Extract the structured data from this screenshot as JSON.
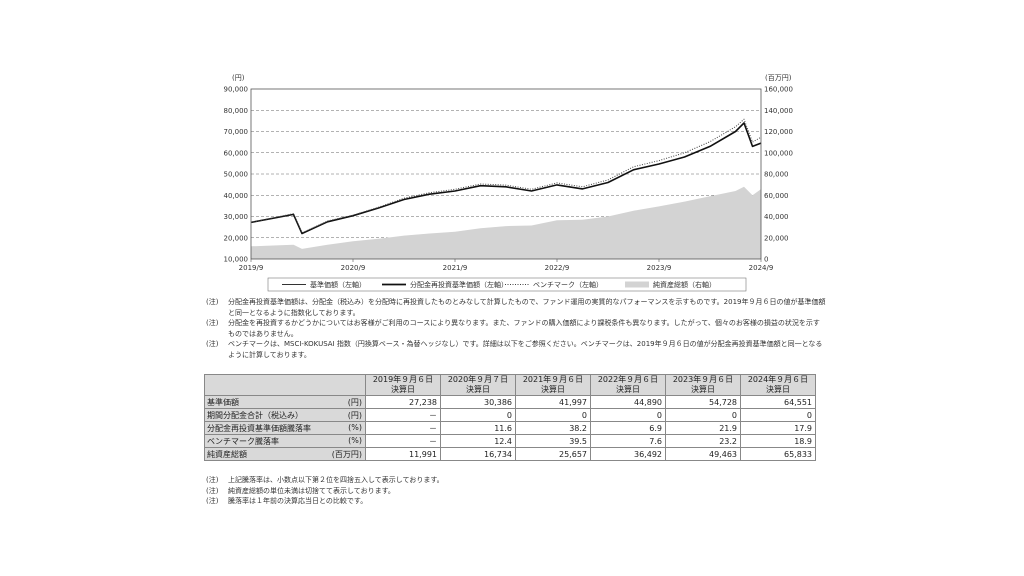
{
  "chart_data": {
    "type": "line",
    "left_axis_unit": "(円)",
    "right_axis_unit": "(百万円)",
    "x_ticks": [
      "2019/9",
      "2020/9",
      "2021/9",
      "2022/9",
      "2023/9",
      "2024/9"
    ],
    "left_ticks": [
      "90,000",
      "80,000",
      "70,000",
      "60,000",
      "50,000",
      "40,000",
      "30,000",
      "20,000",
      "10,000"
    ],
    "right_ticks": [
      "160,000",
      "140,000",
      "120,000",
      "100,000",
      "80,000",
      "60,000",
      "40,000",
      "20,000",
      "0"
    ],
    "ylim_left": [
      10000,
      90000
    ],
    "ylim_right": [
      0,
      160000
    ],
    "grid": true,
    "series": [
      {
        "name": "基準価額（左軸）",
        "axis": "left",
        "style": "solid-thin",
        "color": "#333333",
        "x": [
          "2019/9",
          "2019/12",
          "2020/2",
          "2020/3",
          "2020/6",
          "2020/9",
          "2020/12",
          "2021/3",
          "2021/6",
          "2021/9",
          "2021/12",
          "2022/3",
          "2022/6",
          "2022/9",
          "2022/12",
          "2023/3",
          "2023/6",
          "2023/9",
          "2023/12",
          "2024/3",
          "2024/6",
          "2024/7",
          "2024/8",
          "2024/9"
        ],
        "values": [
          27238,
          29500,
          31000,
          22000,
          27500,
          30386,
          34000,
          38000,
          40500,
          41997,
          44500,
          44000,
          42000,
          44890,
          43000,
          46000,
          52000,
          54728,
          58000,
          63000,
          70000,
          74000,
          63000,
          64551
        ]
      },
      {
        "name": "分配金再投資基準価額（左軸）",
        "axis": "left",
        "style": "solid-thick",
        "color": "#111111",
        "x": [
          "2019/9",
          "2019/12",
          "2020/2",
          "2020/3",
          "2020/6",
          "2020/9",
          "2020/12",
          "2021/3",
          "2021/6",
          "2021/9",
          "2021/12",
          "2022/3",
          "2022/6",
          "2022/9",
          "2022/12",
          "2023/3",
          "2023/6",
          "2023/9",
          "2023/12",
          "2024/3",
          "2024/6",
          "2024/7",
          "2024/8",
          "2024/9"
        ],
        "values": [
          27238,
          29500,
          31000,
          22000,
          27500,
          30386,
          34000,
          38000,
          40500,
          41997,
          44500,
          44000,
          42000,
          44890,
          43000,
          46000,
          52000,
          54728,
          58000,
          63000,
          70000,
          74000,
          63000,
          64551
        ]
      },
      {
        "name": "ベンチマーク（左軸）",
        "axis": "left",
        "style": "dotted",
        "color": "#444444",
        "x": [
          "2019/9",
          "2019/12",
          "2020/2",
          "2020/3",
          "2020/6",
          "2020/9",
          "2020/12",
          "2021/3",
          "2021/6",
          "2021/9",
          "2021/12",
          "2022/3",
          "2022/6",
          "2022/9",
          "2022/12",
          "2023/3",
          "2023/6",
          "2023/9",
          "2023/12",
          "2024/3",
          "2024/6",
          "2024/7",
          "2024/8",
          "2024/9"
        ],
        "values": [
          27238,
          29700,
          31300,
          22300,
          27900,
          30600,
          34400,
          38600,
          41200,
          42800,
          45300,
          44800,
          42800,
          45800,
          44000,
          47200,
          53400,
          56300,
          60000,
          65200,
          72200,
          75800,
          65000,
          67300
        ]
      },
      {
        "name": "純資産総額（右軸）",
        "axis": "right",
        "style": "area",
        "color": "#d3d3d3",
        "x": [
          "2019/9",
          "2019/12",
          "2020/2",
          "2020/3",
          "2020/6",
          "2020/9",
          "2020/12",
          "2021/3",
          "2021/6",
          "2021/9",
          "2021/12",
          "2022/3",
          "2022/6",
          "2022/9",
          "2022/12",
          "2023/3",
          "2023/6",
          "2023/9",
          "2023/12",
          "2024/3",
          "2024/6",
          "2024/7",
          "2024/8",
          "2024/9"
        ],
        "values": [
          11991,
          12800,
          13500,
          9500,
          13500,
          16734,
          19000,
          22000,
          24000,
          25657,
          29000,
          31000,
          31500,
          36492,
          37000,
          40000,
          45500,
          49463,
          54000,
          59000,
          64000,
          68000,
          60000,
          65833
        ]
      }
    ],
    "legend_position": "bottom"
  },
  "notes_top": [
    {
      "tag": "(注)",
      "text": "分配金再投資基準価額は、分配金（税込み）を分配時に再投資したものとみなして計算したもので、ファンド運用の実質的なパフォーマンスを示すものです。2019年９月６日の値が基準価額と同一となるように指数化しております。"
    },
    {
      "tag": "(注)",
      "text": "分配金を再投資するかどうかについてはお客様がご利用のコースにより異なります。また、ファンドの購入価額により課税条件も異なります。したがって、個々のお客様の損益の状況を示すものではありません。"
    },
    {
      "tag": "(注)",
      "text": "ベンチマークは、MSCI-KOKUSAI 指数（円換算ベース・為替ヘッジなし）です。詳細は以下をご参照ください。ベンチマークは、2019年９月６日の値が分配金再投資基準価額と同一となるように計算しております。"
    }
  ],
  "table": {
    "headers": [
      [
        "2019年９月６日",
        "決算日"
      ],
      [
        "2020年９月７日",
        "決算日"
      ],
      [
        "2021年９月６日",
        "決算日"
      ],
      [
        "2022年９月６日",
        "決算日"
      ],
      [
        "2023年９月６日",
        "決算日"
      ],
      [
        "2024年９月６日",
        "決算日"
      ]
    ],
    "rows": [
      {
        "label": "基準価額",
        "unit": "(円)",
        "values": [
          "27,238",
          "30,386",
          "41,997",
          "44,890",
          "54,728",
          "64,551"
        ]
      },
      {
        "label": "期間分配金合計（税込み）",
        "unit": "(円)",
        "values": [
          "－",
          "0",
          "0",
          "0",
          "0",
          "0"
        ]
      },
      {
        "label": "分配金再投資基準価額騰落率",
        "unit": "(%)",
        "values": [
          "－",
          "11.6",
          "38.2",
          "6.9",
          "21.9",
          "17.9"
        ]
      },
      {
        "label": "ベンチマーク騰落率",
        "unit": "(%)",
        "values": [
          "－",
          "12.4",
          "39.5",
          "7.6",
          "23.2",
          "18.9"
        ]
      },
      {
        "label": "純資産総額",
        "unit": "(百万円)",
        "values": [
          "11,991",
          "16,734",
          "25,657",
          "36,492",
          "49,463",
          "65,833"
        ]
      }
    ]
  },
  "notes_bottom": [
    {
      "tag": "(注)",
      "text": "上記騰落率は、小数点以下第２位を四捨五入して表示しております。"
    },
    {
      "tag": "(注)",
      "text": "純資産総額の単位未満は切捨てて表示しております。"
    },
    {
      "tag": "(注)",
      "text": "騰落率は１年前の決算応当日との比較です。"
    }
  ]
}
